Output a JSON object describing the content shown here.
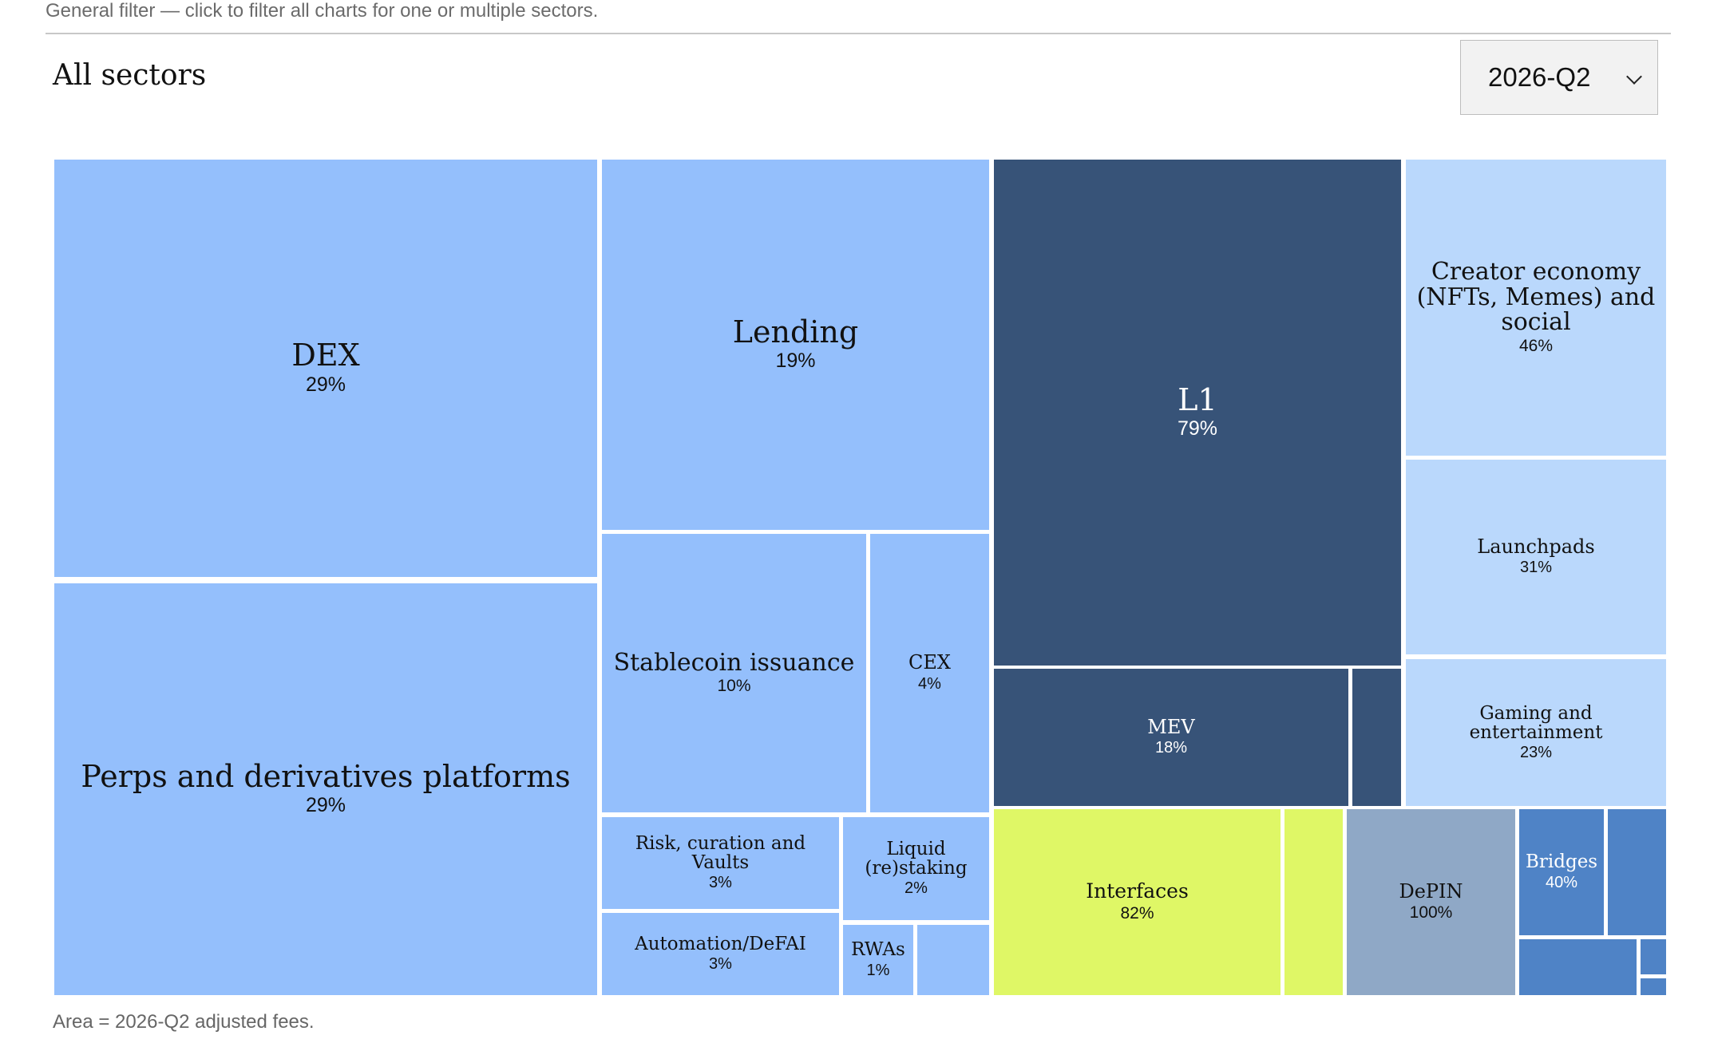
{
  "header": {
    "filter_note": "General filter — click to filter all charts for one or multiple sectors.",
    "heading": "All sectors"
  },
  "period_select": {
    "value": "2026-Q2"
  },
  "footnote": "Area = 2026-Q2 adjusted fees.",
  "colors": {
    "light_blue": "#94bffc",
    "pale_blue": "#bad8fc",
    "dark_navy": "#375378",
    "lime": "#dff766",
    "grey_blue": "#8fa8c6",
    "mid_blue": "#4f83c6"
  },
  "chart_data": {
    "type": "treemap",
    "items": [
      {
        "label": "DEX",
        "pct": "29%",
        "color": "light_blue"
      },
      {
        "label": "Perps and derivatives platforms",
        "pct": "29%",
        "color": "light_blue"
      },
      {
        "label": "Lending",
        "pct": "19%",
        "color": "light_blue"
      },
      {
        "label": "Stablecoin issuance",
        "pct": "10%",
        "color": "light_blue"
      },
      {
        "label": "CEX",
        "pct": "4%",
        "color": "light_blue"
      },
      {
        "label": "Risk, curation and Vaults",
        "pct": "3%",
        "color": "light_blue"
      },
      {
        "label": "Liquid (re)staking",
        "pct": "2%",
        "color": "light_blue"
      },
      {
        "label": "Automation/DeFAI",
        "pct": "3%",
        "color": "light_blue"
      },
      {
        "label": "RWAs",
        "pct": "1%",
        "color": "light_blue"
      },
      {
        "label": "",
        "pct": "",
        "color": "light_blue"
      },
      {
        "label": "L1",
        "pct": "79%",
        "color": "dark_navy"
      },
      {
        "label": "MEV",
        "pct": "18%",
        "color": "dark_navy"
      },
      {
        "label": "",
        "pct": "",
        "color": "dark_navy"
      },
      {
        "label": "Creator economy (NFTs, Memes) and social",
        "pct": "46%",
        "color": "pale_blue"
      },
      {
        "label": "Launchpads",
        "pct": "31%",
        "color": "pale_blue"
      },
      {
        "label": "Gaming and entertainment",
        "pct": "23%",
        "color": "pale_blue"
      },
      {
        "label": "Interfaces",
        "pct": "82%",
        "color": "lime"
      },
      {
        "label": "",
        "pct": "",
        "color": "lime"
      },
      {
        "label": "DePIN",
        "pct": "100%",
        "color": "grey_blue"
      },
      {
        "label": "Bridges",
        "pct": "40%",
        "color": "mid_blue"
      },
      {
        "label": "",
        "pct": "",
        "color": "mid_blue"
      },
      {
        "label": "",
        "pct": "",
        "color": "mid_blue"
      },
      {
        "label": "",
        "pct": "",
        "color": "mid_blue"
      },
      {
        "label": "",
        "pct": "",
        "color": "mid_blue"
      }
    ]
  }
}
